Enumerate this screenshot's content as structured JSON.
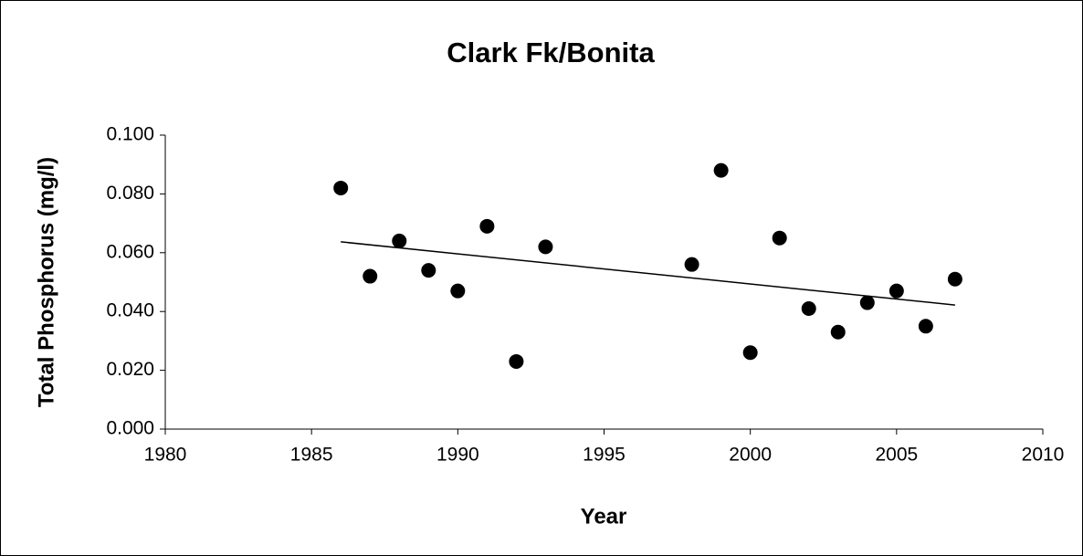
{
  "chart_data": {
    "type": "scatter",
    "title": "Clark Fk/Bonita",
    "x_label": "Year",
    "y_label": "Total Phosphorus (mg/l)",
    "series": [
      {
        "color": "#000000",
        "x": [
          1986,
          1987,
          1988,
          1989,
          1990,
          1991,
          1992,
          1993,
          1998,
          1999,
          2000,
          2001,
          2002,
          2003,
          2004,
          2005,
          2006,
          2007
        ],
        "values": [
          0.082,
          0.052,
          0.064,
          0.054,
          0.047,
          0.069,
          0.023,
          0.062,
          0.056,
          0.088,
          0.026,
          0.065,
          0.041,
          0.033,
          0.043,
          0.047,
          0.035,
          0.051
        ]
      }
    ],
    "trend": {
      "color": "#000000",
      "x": [
        1986,
        2007
      ],
      "values": [
        0.0637,
        0.0422
      ]
    },
    "xlim": [
      1980,
      2010
    ],
    "xticks": [
      1980,
      1985,
      1990,
      1995,
      2000,
      2005,
      2010
    ],
    "ylim": [
      0,
      0.1
    ],
    "yticks": [
      {
        "value": 0,
        "label": "0.000"
      },
      {
        "value": 0.02,
        "label": "0.020"
      },
      {
        "value": 0.04,
        "label": "0.040"
      },
      {
        "value": 0.06,
        "label": "0.060"
      },
      {
        "value": 0.08,
        "label": "0.080"
      },
      {
        "value": 0.1,
        "label": "0.100"
      }
    ]
  }
}
